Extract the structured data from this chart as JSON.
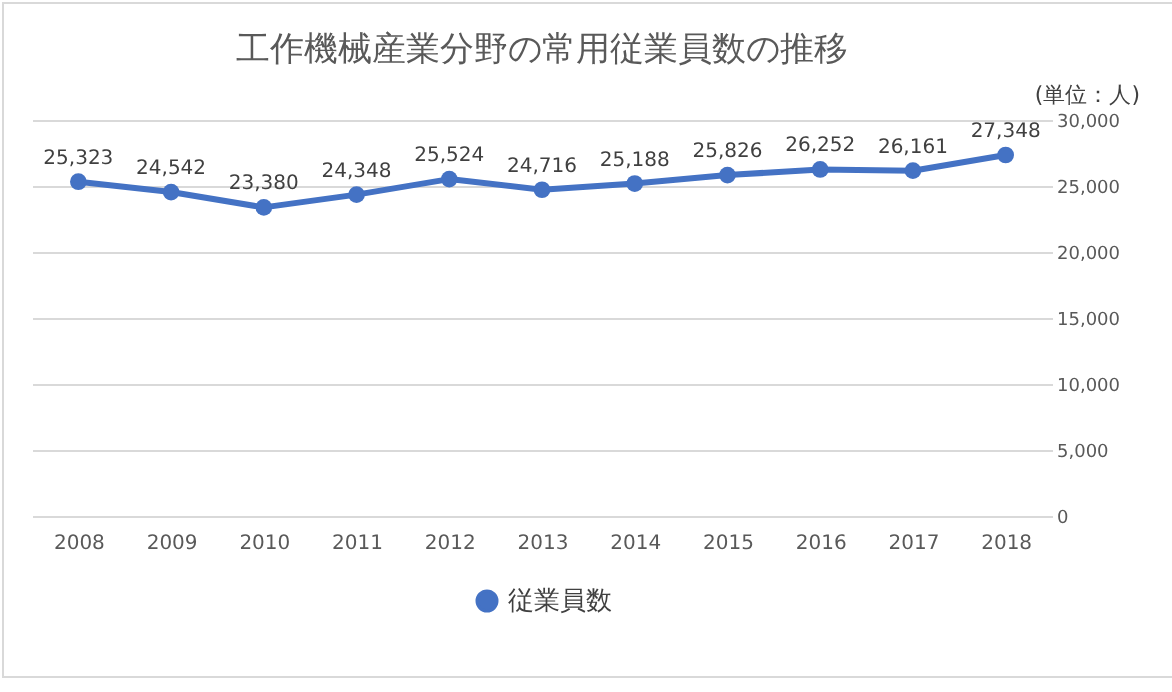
{
  "chart_data": {
    "type": "line",
    "title": "工作機械産業分野の常用従業員数の推移",
    "annotations": [
      "(単位：人)"
    ],
    "categories": [
      "2008",
      "2009",
      "2010",
      "2011",
      "2012",
      "2013",
      "2014",
      "2015",
      "2016",
      "2017",
      "2018"
    ],
    "series": [
      {
        "name": "従業員数",
        "color": "#4472c4",
        "values": [
          25323,
          24542,
          23380,
          24348,
          25524,
          24716,
          25188,
          25826,
          26252,
          26161,
          27348
        ]
      }
    ],
    "value_labels": [
      "25,323",
      "24,542",
      "23,380",
      "24,348",
      "25,524",
      "24,716",
      "25,188",
      "25,826",
      "26,252",
      "26,161",
      "27,348"
    ],
    "ylim": [
      0,
      30000
    ],
    "yticks": [
      0,
      {
        "value": 5000,
        "label": "5,000"
      },
      {
        "value": 10000,
        "label": "10,000"
      },
      {
        "value": 15000,
        "label": "15,000"
      },
      {
        "value": 20000,
        "label": "20,000"
      },
      {
        "value": 25000,
        "label": "25,000"
      },
      {
        "value": 30000,
        "label": "30,000"
      }
    ],
    "grid": "y",
    "legend": "bottom",
    "marker": "circle",
    "line_style": "solid"
  }
}
